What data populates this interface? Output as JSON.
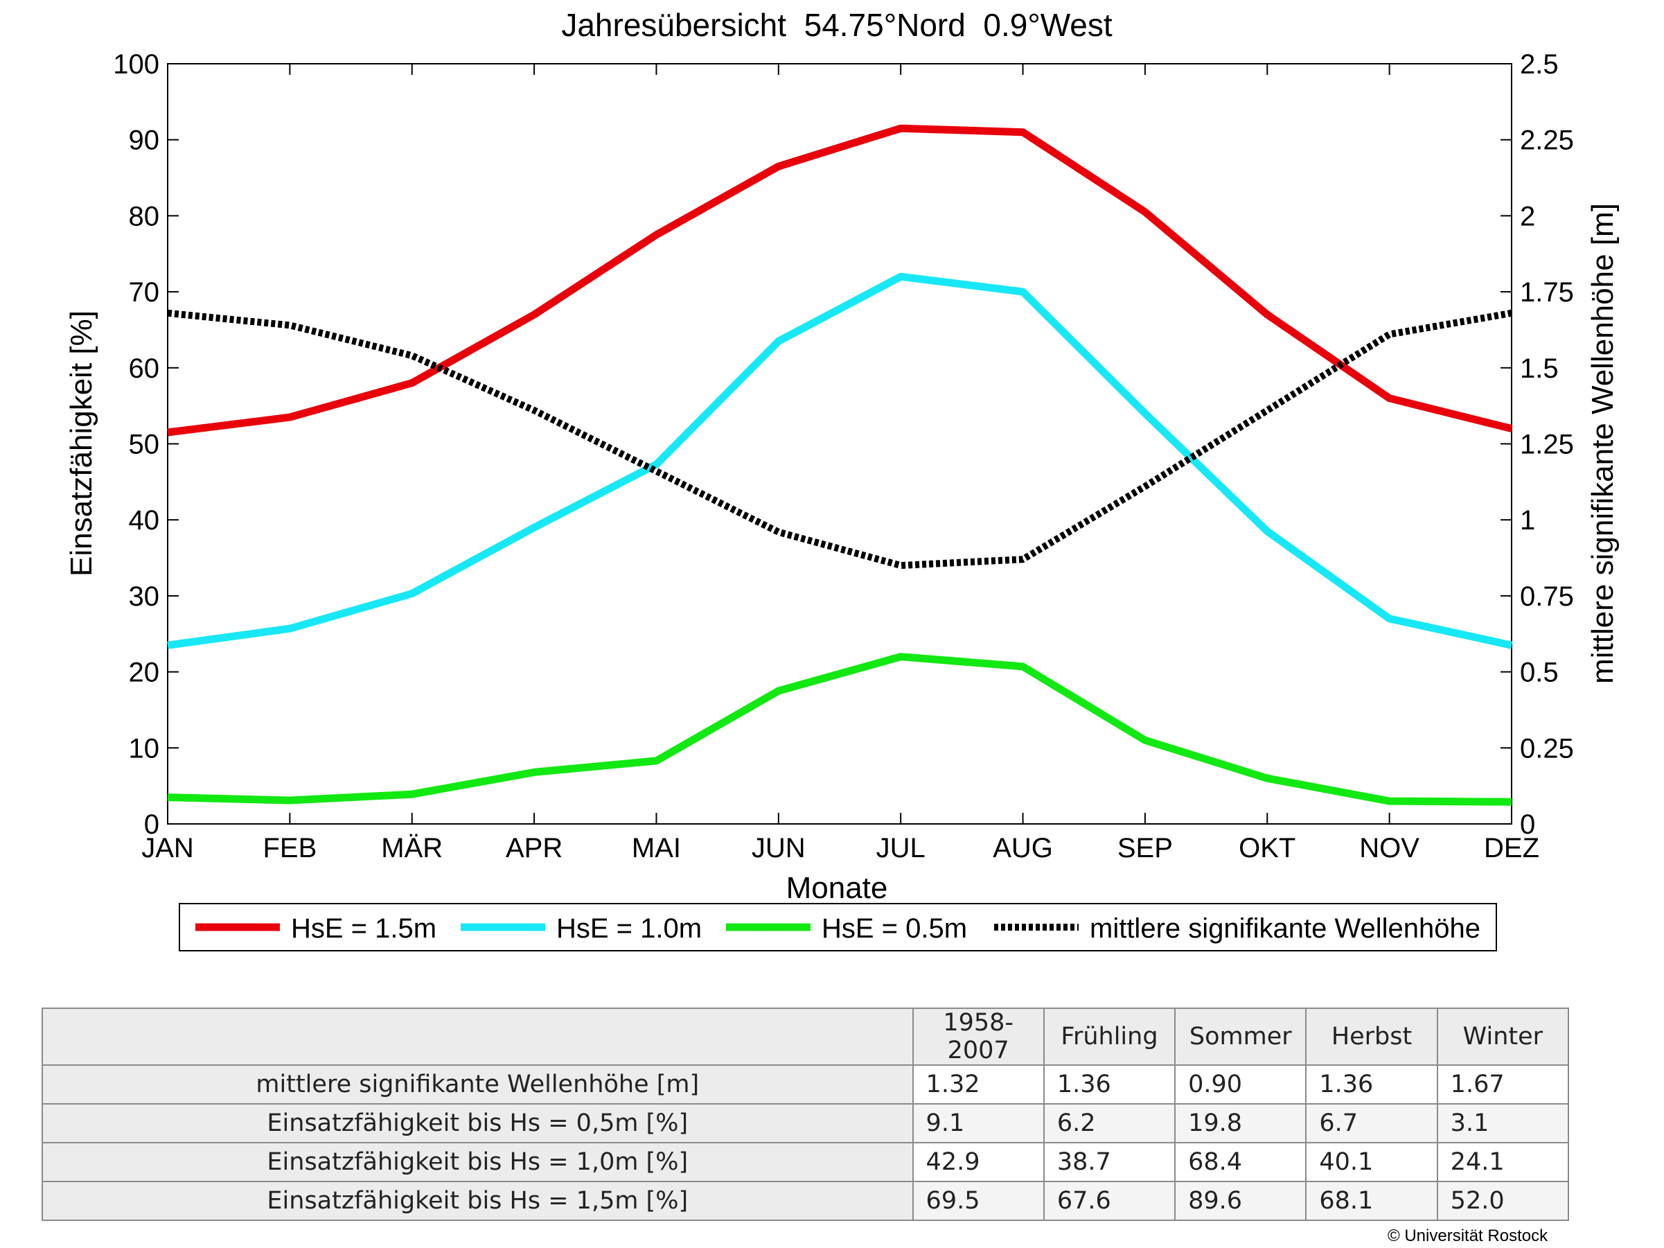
{
  "chart_data": {
    "type": "line",
    "title": "Jahresübersicht  54.75°Nord  0.9°West",
    "xlabel": "Monate",
    "ylabel": "Einsatzfähigkeit [%]",
    "y2label": "mittlere signifikante Wellenhöhe [m]",
    "categories": [
      "JAN",
      "FEB",
      "MÄR",
      "APR",
      "MAI",
      "JUN",
      "JUL",
      "AUG",
      "SEP",
      "OKT",
      "NOV",
      "DEZ"
    ],
    "ylim": [
      0,
      100
    ],
    "y2lim": [
      0,
      2.5
    ],
    "yticks": [
      "0",
      "10",
      "20",
      "30",
      "40",
      "50",
      "60",
      "70",
      "80",
      "90",
      "100"
    ],
    "y2ticks": [
      "0",
      "0.25",
      "0.5",
      "0.75",
      "1",
      "1.25",
      "1.5",
      "1.75",
      "2",
      "2.25",
      "2.5"
    ],
    "grid": false,
    "legend_position": "bottom",
    "series": [
      {
        "name": "HsE = 1.5m",
        "axis": "left",
        "color": "#e8000b",
        "style": "solid",
        "values": [
          51.5,
          53.5,
          58,
          67,
          77.5,
          86.5,
          91.5,
          91,
          80.5,
          67,
          56,
          52
        ]
      },
      {
        "name": "HsE = 1.0m",
        "axis": "left",
        "color": "#18e8f5",
        "style": "solid",
        "values": [
          23.5,
          25.7,
          30.3,
          39,
          47.3,
          63.5,
          72,
          70,
          54,
          38.5,
          27,
          23.5
        ]
      },
      {
        "name": "HsE = 0.5m",
        "axis": "left",
        "color": "#12e812",
        "style": "solid",
        "values": [
          3.5,
          3.1,
          3.9,
          6.8,
          8.3,
          17.5,
          22,
          20.7,
          11,
          6,
          3,
          2.9
        ]
      },
      {
        "name": "mittlere signifikante Wellenhöhe",
        "axis": "right",
        "color": "#000000",
        "style": "dotted",
        "values": [
          1.68,
          1.64,
          1.54,
          1.36,
          1.16,
          0.96,
          0.85,
          0.87,
          1.11,
          1.36,
          1.61,
          1.68
        ]
      }
    ]
  },
  "table": {
    "headers": [
      "1958-2007",
      "Frühling",
      "Sommer",
      "Herbst",
      "Winter"
    ],
    "rows": [
      {
        "label": "mittlere signifikante Wellenhöhe [m]",
        "values": [
          "1.32",
          "1.36",
          "0.90",
          "1.36",
          "1.67"
        ]
      },
      {
        "label": "Einsatzfähigkeit bis Hs = 0,5m [%]",
        "values": [
          "9.1",
          "6.2",
          "19.8",
          "6.7",
          "3.1"
        ]
      },
      {
        "label": "Einsatzfähigkeit bis Hs = 1,0m [%]",
        "values": [
          "42.9",
          "38.7",
          "68.4",
          "40.1",
          "24.1"
        ]
      },
      {
        "label": "Einsatzfähigkeit bis Hs = 1,5m [%]",
        "values": [
          "69.5",
          "67.6",
          "89.6",
          "68.1",
          "52.0"
        ]
      }
    ]
  },
  "copyright": "© Universität Rostock"
}
